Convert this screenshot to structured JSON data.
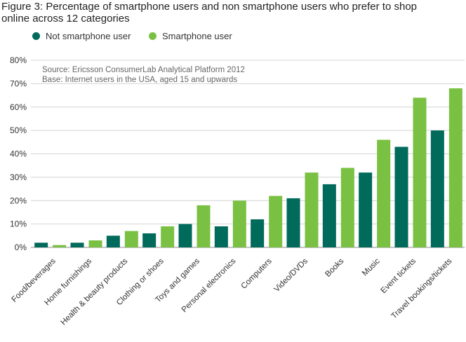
{
  "title": "Figure 3: Percentage of smartphone users and non smartphone users who prefer to shop online across 12 categories",
  "legend": [
    {
      "label": "Not smartphone user",
      "color": "#006a5b"
    },
    {
      "label": "Smartphone user",
      "color": "#7ac143"
    }
  ],
  "note": {
    "source": "Source: Ericsson ConsumerLab Analytical Platform 2012",
    "base": "Base: Internet users in the USA, aged 15 and upwards"
  },
  "chart_data": {
    "type": "bar",
    "categories": [
      "Food/beverages",
      "Home furnishings",
      "Health & beauty products",
      "Clothing or shoes",
      "Toys and games",
      "Personal electronics",
      "Computers",
      "Video/DVDs",
      "Books",
      "Music",
      "Event tickets",
      "Travel bookings/tickets"
    ],
    "series": [
      {
        "name": "Not smartphone user",
        "color": "#006a5b",
        "values": [
          2,
          2,
          5,
          6,
          10,
          9,
          12,
          21,
          27,
          32,
          43,
          50
        ]
      },
      {
        "name": "Smartphone user",
        "color": "#7ac143",
        "values": [
          1,
          3,
          7,
          9,
          18,
          20,
          22,
          32,
          34,
          46,
          64,
          68
        ]
      }
    ],
    "ylim": [
      0,
      80
    ],
    "yticks": [
      "0%",
      "10%",
      "20%",
      "30%",
      "40%",
      "50%",
      "60%",
      "70%",
      "80%"
    ],
    "grid": true,
    "legend_position": "top-left"
  }
}
